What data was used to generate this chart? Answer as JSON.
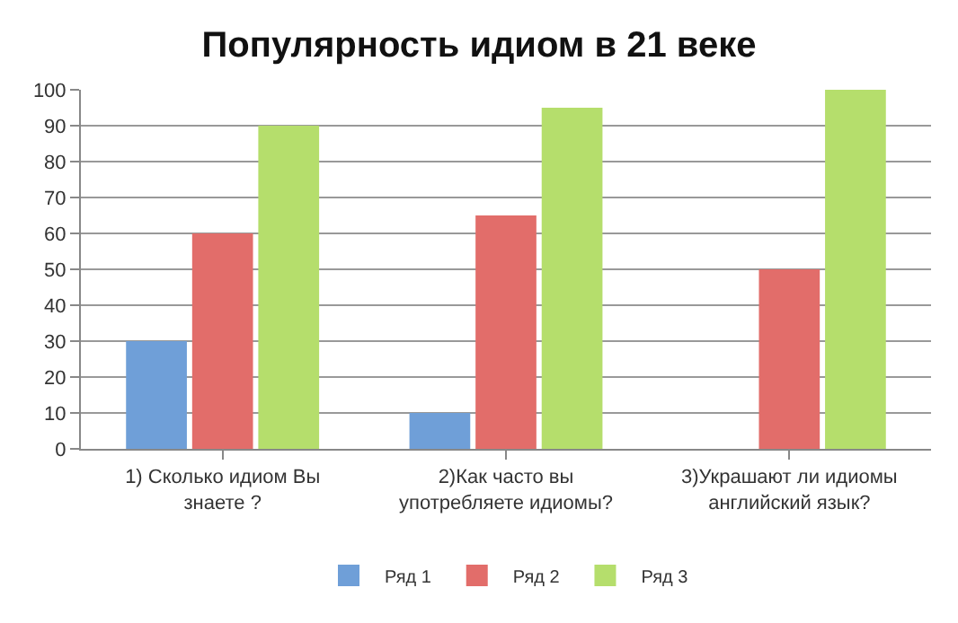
{
  "chart_data": {
    "type": "bar",
    "title": "Популярность идиом в 21 веке",
    "categories": [
      "1) Сколько идиом Вы знаете ?",
      "2)Как часто вы употребляете идиомы?",
      "3)Украшают ли идиомы английский язык?"
    ],
    "series": [
      {
        "name": "Ряд 1",
        "color": "#6f9fd8",
        "values": [
          30,
          10,
          null
        ]
      },
      {
        "name": "Ряд 2",
        "color": "#e26d6a",
        "values": [
          60,
          65,
          50
        ]
      },
      {
        "name": "Ряд 3",
        "color": "#b5de6c",
        "values": [
          90,
          95,
          100
        ]
      }
    ],
    "ylim": [
      0,
      100
    ],
    "yticks": [
      0,
      10,
      20,
      30,
      40,
      50,
      60,
      70,
      80,
      90,
      100
    ],
    "grid": "y",
    "legend": "bottom"
  }
}
